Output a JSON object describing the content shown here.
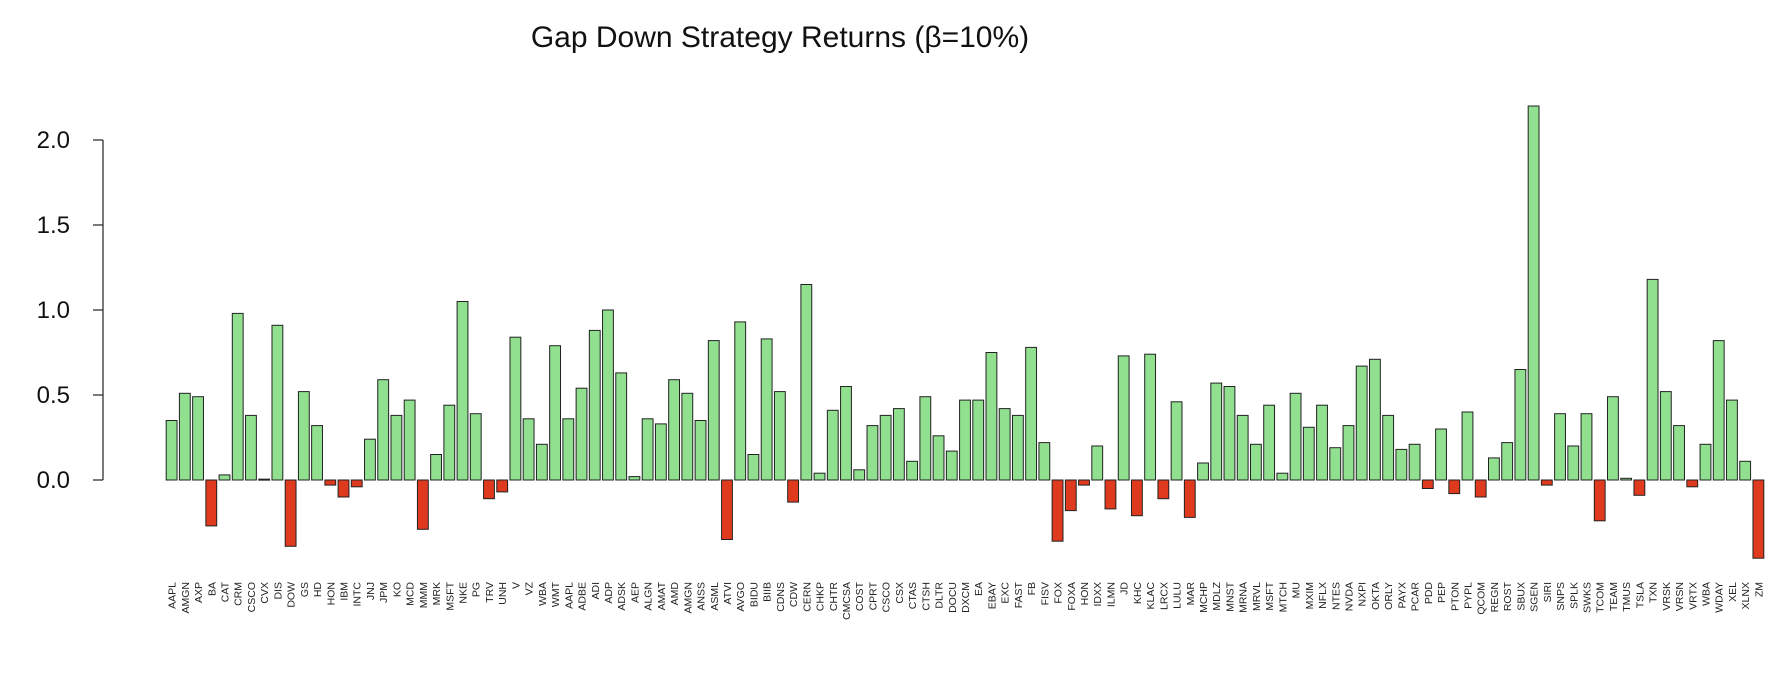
{
  "chart_data": {
    "type": "bar",
    "title": "Gap Down Strategy Returns (β=10%)",
    "xlabel": "",
    "ylabel": "",
    "ylim": [
      -0.45,
      2.2
    ],
    "yticks": [
      "0.0",
      "0.5",
      "1.0",
      "1.5",
      "2.0"
    ],
    "grid": false,
    "colors": {
      "positive": "#90e090",
      "negative": "#e03a1e",
      "stroke": "#222222"
    },
    "categories": [
      "AAPL",
      "AMGN",
      "AXP",
      "BA",
      "CAT",
      "CRM",
      "CSCO",
      "CVX",
      "DIS",
      "DOW",
      "GS",
      "HD",
      "HON",
      "IBM",
      "INTC",
      "JNJ",
      "JPM",
      "KO",
      "MCD",
      "MMM",
      "MRK",
      "MSFT",
      "NKE",
      "PG",
      "TRV",
      "UNH",
      "V",
      "VZ",
      "WBA",
      "WMT",
      "AAPL",
      "ADBE",
      "ADI",
      "ADP",
      "ADSK",
      "AEP",
      "ALGN",
      "AMAT",
      "AMD",
      "AMGN",
      "ANSS",
      "ASML",
      "ATVI",
      "AVGO",
      "BIDU",
      "BIIB",
      "CDNS",
      "CDW",
      "CERN",
      "CHKP",
      "CHTR",
      "CMCSA",
      "COST",
      "CPRT",
      "CSCO",
      "CSX",
      "CTAS",
      "CTSH",
      "DLTR",
      "DOCU",
      "DXCM",
      "EA",
      "EBAY",
      "EXC",
      "FAST",
      "FB",
      "FISV",
      "FOX",
      "FOXA",
      "HON",
      "IDXX",
      "ILMN",
      "JD",
      "KHC",
      "KLAC",
      "LRCX",
      "LULU",
      "MAR",
      "MCHP",
      "MDLZ",
      "MNST",
      "MRNA",
      "MRVL",
      "MSFT",
      "MTCH",
      "MU",
      "MXIM",
      "NFLX",
      "NTES",
      "NVDA",
      "NXPI",
      "OKTA",
      "ORLY",
      "PAYX",
      "PCAR",
      "PDD",
      "PEP",
      "PTON",
      "PYPL",
      "QCOM",
      "REGN",
      "ROST",
      "SBUX",
      "SGEN",
      "SIRI",
      "SNPS",
      "SPLK",
      "SWKS",
      "TCOM",
      "TEAM",
      "TMUS",
      "TSLA",
      "TXN",
      "VRSK",
      "VRSN",
      "VRTX",
      "WBA",
      "WDAY",
      "XEL",
      "XLNX",
      "ZM"
    ],
    "values": [
      0.35,
      0.51,
      0.49,
      -0.27,
      0.03,
      0.98,
      0.38,
      0.005,
      0.91,
      -0.39,
      0.52,
      0.32,
      -0.03,
      -0.1,
      -0.04,
      0.24,
      0.59,
      0.38,
      0.47,
      -0.29,
      0.15,
      0.44,
      1.05,
      0.39,
      -0.11,
      -0.07,
      0.84,
      0.36,
      0.21,
      0.79,
      0.36,
      0.54,
      0.88,
      1.0,
      0.63,
      0.02,
      0.36,
      0.33,
      0.59,
      0.51,
      0.35,
      0.82,
      -0.35,
      0.93,
      0.15,
      0.83,
      0.52,
      -0.13,
      1.15,
      0.04,
      0.41,
      0.55,
      0.06,
      0.32,
      0.38,
      0.42,
      0.11,
      0.49,
      0.26,
      0.17,
      0.47,
      0.47,
      0.75,
      0.42,
      0.38,
      0.78,
      0.22,
      -0.36,
      -0.18,
      -0.03,
      0.2,
      -0.17,
      0.73,
      -0.21,
      0.74,
      -0.11,
      0.46,
      -0.22,
      0.1,
      0.57,
      0.55,
      0.38,
      0.21,
      0.44,
      0.04,
      0.51,
      0.31,
      0.44,
      0.19,
      0.32,
      0.67,
      0.71,
      0.38,
      0.18,
      0.21,
      -0.05,
      0.3,
      -0.08,
      0.4,
      -0.1,
      0.13,
      0.22,
      0.65,
      2.2,
      -0.03,
      0.39,
      0.2,
      0.39,
      -0.24,
      0.49,
      0.01,
      -0.09,
      1.18,
      0.52,
      0.32,
      -0.04,
      0.21,
      0.82,
      0.47,
      0.11,
      -0.46
    ]
  }
}
